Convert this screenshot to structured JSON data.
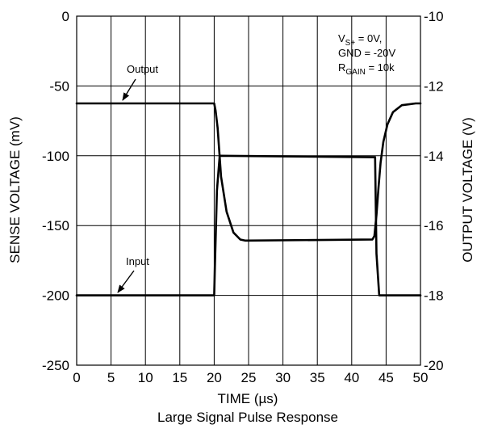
{
  "chart_data": {
    "type": "line",
    "title": "",
    "caption": "Large Signal Pulse Response",
    "xlabel": "TIME (µs)",
    "ylabel": "SENSE VOLTAGE (mV)",
    "y2label": "OUTPUT VOLTAGE (V)",
    "xlim": [
      0,
      50
    ],
    "ylim": [
      -250,
      0
    ],
    "y2lim": [
      -20,
      -10
    ],
    "xticks": [
      "0",
      "5",
      "10",
      "15",
      "20",
      "25",
      "30",
      "35",
      "40",
      "45",
      "50"
    ],
    "yticks": [
      "0",
      "-50",
      "-100",
      "-150",
      "-200",
      "-250"
    ],
    "y2ticks": [
      "-10",
      "-12",
      "-14",
      "-16",
      "-18",
      "-20"
    ],
    "grid": true,
    "conditions": {
      "vs_prefix": "V",
      "vs_sub": "S+",
      "vs_value": " = 0V,",
      "gnd": "GND = -20V",
      "rgain_prefix": "R",
      "rgain_sub": "GAIN",
      "rgain_value": " = 10k"
    },
    "series": [
      {
        "name": "Input",
        "axis": "left",
        "x": [
          0,
          20.0,
          20.1,
          20.4,
          20.8,
          43.0,
          43.4,
          43.6,
          44,
          50
        ],
        "values": [
          -200,
          -200,
          -180,
          -125,
          -100,
          -101,
          -101,
          -170,
          -200,
          -200
        ]
      },
      {
        "name": "Output",
        "axis": "right",
        "x": [
          0,
          20.0,
          20.2,
          20.5,
          21,
          21.8,
          22.8,
          23.8,
          24.5,
          43.0,
          43.3,
          43.6,
          43.9,
          44.2,
          44.6,
          45.2,
          46,
          47.3,
          49.3,
          50
        ],
        "values": [
          -12.5,
          -12.5,
          -12.7,
          -13.2,
          -14.6,
          -15.6,
          -16.2,
          -16.4,
          -16.43,
          -16.4,
          -16.3,
          -15.7,
          -14.9,
          -14.2,
          -13.6,
          -13.1,
          -12.75,
          -12.55,
          -12.5,
          -12.5
        ]
      }
    ],
    "annotations": [
      {
        "text": "Output",
        "target_series": "Output",
        "target_x": 8.5
      },
      {
        "text": "Input",
        "target_series": "Input",
        "target_x": 8.0
      }
    ]
  }
}
